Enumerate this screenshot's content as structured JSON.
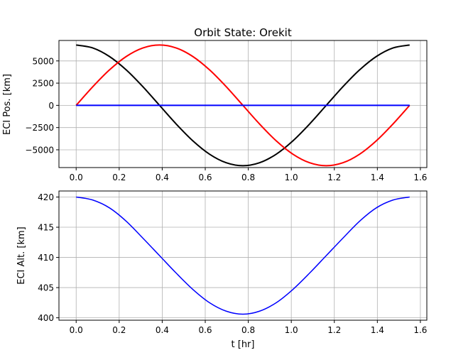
{
  "chart_data": [
    {
      "type": "line",
      "title": "Orbit State: Orekit",
      "xlabel": "",
      "ylabel": "ECI Pos. [km]",
      "xlim": [
        -0.08,
        1.63
      ],
      "ylim": [
        -7000,
        7300
      ],
      "xticks": [
        0.0,
        0.2,
        0.4,
        0.6,
        0.8,
        1.0,
        1.2,
        1.4,
        1.6
      ],
      "xtick_labels": [
        "0.0",
        "0.2",
        "0.4",
        "0.6",
        "0.8",
        "1.0",
        "1.2",
        "1.4",
        "1.6"
      ],
      "yticks": [
        -5000,
        -2500,
        0,
        2500,
        5000
      ],
      "ytick_labels": [
        "−5000",
        "−2500",
        "0",
        "2500",
        "5000"
      ],
      "grid": true,
      "series": [
        {
          "color": "#000000",
          "x": [
            0,
            0.0775,
            0.155,
            0.2325,
            0.31,
            0.3875,
            0.465,
            0.5425,
            0.62,
            0.6975,
            0.775,
            0.8525,
            0.93,
            1.0075,
            1.085,
            1.1625,
            1.24,
            1.3175,
            1.395,
            1.4725,
            1.55
          ],
          "y": [
            6791,
            6459,
            5494,
            3992,
            2099,
            0,
            -2099,
            -3992,
            -5494,
            -6459,
            -6791,
            -6459,
            -5494,
            -3992,
            -2099,
            0,
            2099,
            3992,
            5494,
            6459,
            6791
          ]
        },
        {
          "color": "#ff0000",
          "x": [
            0,
            0.0775,
            0.155,
            0.2325,
            0.31,
            0.3875,
            0.465,
            0.5425,
            0.62,
            0.6975,
            0.775,
            0.8525,
            0.93,
            1.0075,
            1.085,
            1.1625,
            1.24,
            1.3175,
            1.395,
            1.4725,
            1.55
          ],
          "y": [
            0,
            2099,
            3992,
            5494,
            6459,
            6791,
            6459,
            5494,
            3992,
            2099,
            0,
            -2099,
            -3992,
            -5494,
            -6459,
            -6791,
            -6459,
            -5494,
            -3992,
            -2099,
            0
          ]
        },
        {
          "color": "#0000ff",
          "x": [
            0,
            1.55
          ],
          "y": [
            0,
            0
          ]
        }
      ]
    },
    {
      "type": "line",
      "title": "",
      "xlabel": "t [hr]",
      "ylabel": "ECI Alt. [km]",
      "xlim": [
        -0.08,
        1.63
      ],
      "ylim": [
        399.6,
        421.0
      ],
      "xticks": [
        0.0,
        0.2,
        0.4,
        0.6,
        0.8,
        1.0,
        1.2,
        1.4,
        1.6
      ],
      "xtick_labels": [
        "0.0",
        "0.2",
        "0.4",
        "0.6",
        "0.8",
        "1.0",
        "1.2",
        "1.4",
        "1.6"
      ],
      "yticks": [
        400,
        405,
        410,
        415,
        420
      ],
      "ytick_labels": [
        "400",
        "405",
        "410",
        "415",
        "420"
      ],
      "grid": true,
      "series": [
        {
          "color": "#0000ff",
          "x": [
            0,
            0.0775,
            0.155,
            0.2325,
            0.31,
            0.3875,
            0.465,
            0.5425,
            0.62,
            0.6975,
            0.775,
            0.8525,
            0.93,
            1.0075,
            1.085,
            1.1625,
            1.24,
            1.3175,
            1.395,
            1.4725,
            1.55
          ],
          "y": [
            420.0,
            419.5,
            418.2,
            416.0,
            413.2,
            410.3,
            407.4,
            404.7,
            402.5,
            401.1,
            400.6,
            401.1,
            402.5,
            404.7,
            407.4,
            410.3,
            413.2,
            416.0,
            418.2,
            419.5,
            420.0
          ]
        }
      ]
    }
  ]
}
